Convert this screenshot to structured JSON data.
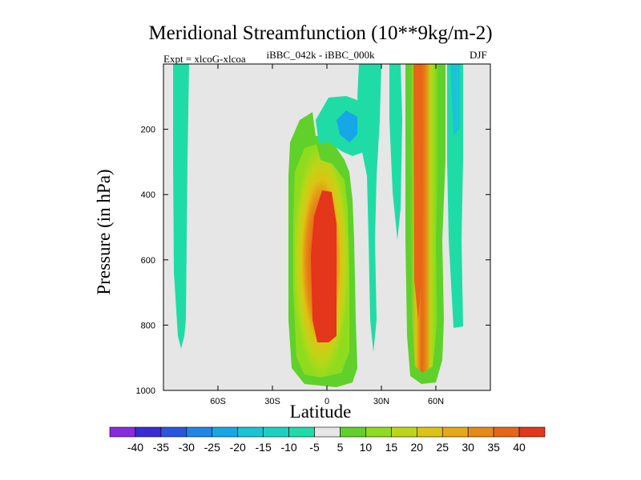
{
  "chart_data": {
    "type": "heatmap",
    "title": "Meridional Streamfunction (10**9kg/m-2)",
    "subtitle_left": "Expt = xlcoG-xlcoa",
    "subtitle_center": "iBBC_042k - iBBC_000k",
    "subtitle_right": "DJF",
    "xlabel": "Latitude",
    "ylabel": "Pressure (in hPa)",
    "xlim": [
      -90,
      90
    ],
    "ylim": [
      1000,
      0
    ],
    "x_ticks": [
      {
        "value": -60,
        "label": "60S"
      },
      {
        "value": -30,
        "label": "30S"
      },
      {
        "value": 0,
        "label": "0"
      },
      {
        "value": 30,
        "label": "30N"
      },
      {
        "value": 60,
        "label": "60N"
      }
    ],
    "y_ticks": [
      {
        "value": 200,
        "label": "200"
      },
      {
        "value": 400,
        "label": "400"
      },
      {
        "value": 600,
        "label": "600"
      },
      {
        "value": 800,
        "label": "800"
      },
      {
        "value": 1000,
        "label": "1000"
      }
    ],
    "contour_levels": [
      -40,
      -35,
      -30,
      -25,
      -20,
      -15,
      -10,
      -5,
      5,
      10,
      15,
      20,
      25,
      30,
      35,
      40
    ],
    "colorbar": {
      "colors": [
        "#8a2be2",
        "#3a2bd4",
        "#2a55e0",
        "#1f86e6",
        "#16a7e8",
        "#19c4d6",
        "#19d2c2",
        "#1fdca6",
        "#e6e6e6",
        "#5fd12a",
        "#8fdc1e",
        "#bcd617",
        "#dcc414",
        "#e6a814",
        "#e68a16",
        "#e86618",
        "#e3361a"
      ],
      "labels": [
        "-40",
        "-35",
        "-30",
        "-25",
        "-20",
        "-15",
        "-10",
        "-5",
        "5",
        "10",
        "15",
        "20",
        "25",
        "30",
        "35",
        "40"
      ]
    },
    "background_color": "#e6e6e6",
    "features": [
      {
        "name": "high-latitude-south-negative-band",
        "lat_range": [
          -84,
          -77
        ],
        "p_range": [
          0,
          860
        ],
        "value": -7
      },
      {
        "name": "tropical-positive-cell",
        "lat_range": [
          -20,
          16
        ],
        "p_range": [
          220,
          990
        ],
        "peak_value": 42,
        "peak_lat": 0,
        "peak_p": 600
      },
      {
        "name": "tropical-upper-negative-patch",
        "lat_range": [
          -6,
          18
        ],
        "p_range": [
          90,
          320
        ],
        "value": -15
      },
      {
        "name": "northern-subtropical-negative-strip",
        "lat_range": [
          20,
          40
        ],
        "p_range": [
          0,
          880
        ],
        "value": -7
      },
      {
        "name": "northern-midlatitude-positive-band",
        "lat_range": [
          46,
          66
        ],
        "p_range": [
          0,
          980
        ],
        "peak_value": 37,
        "peak_lat": 50,
        "peak_p": 500
      },
      {
        "name": "high-latitude-north-negative-band",
        "lat_range": [
          68,
          76
        ],
        "p_range": [
          0,
          800
        ],
        "value": -12
      }
    ]
  }
}
